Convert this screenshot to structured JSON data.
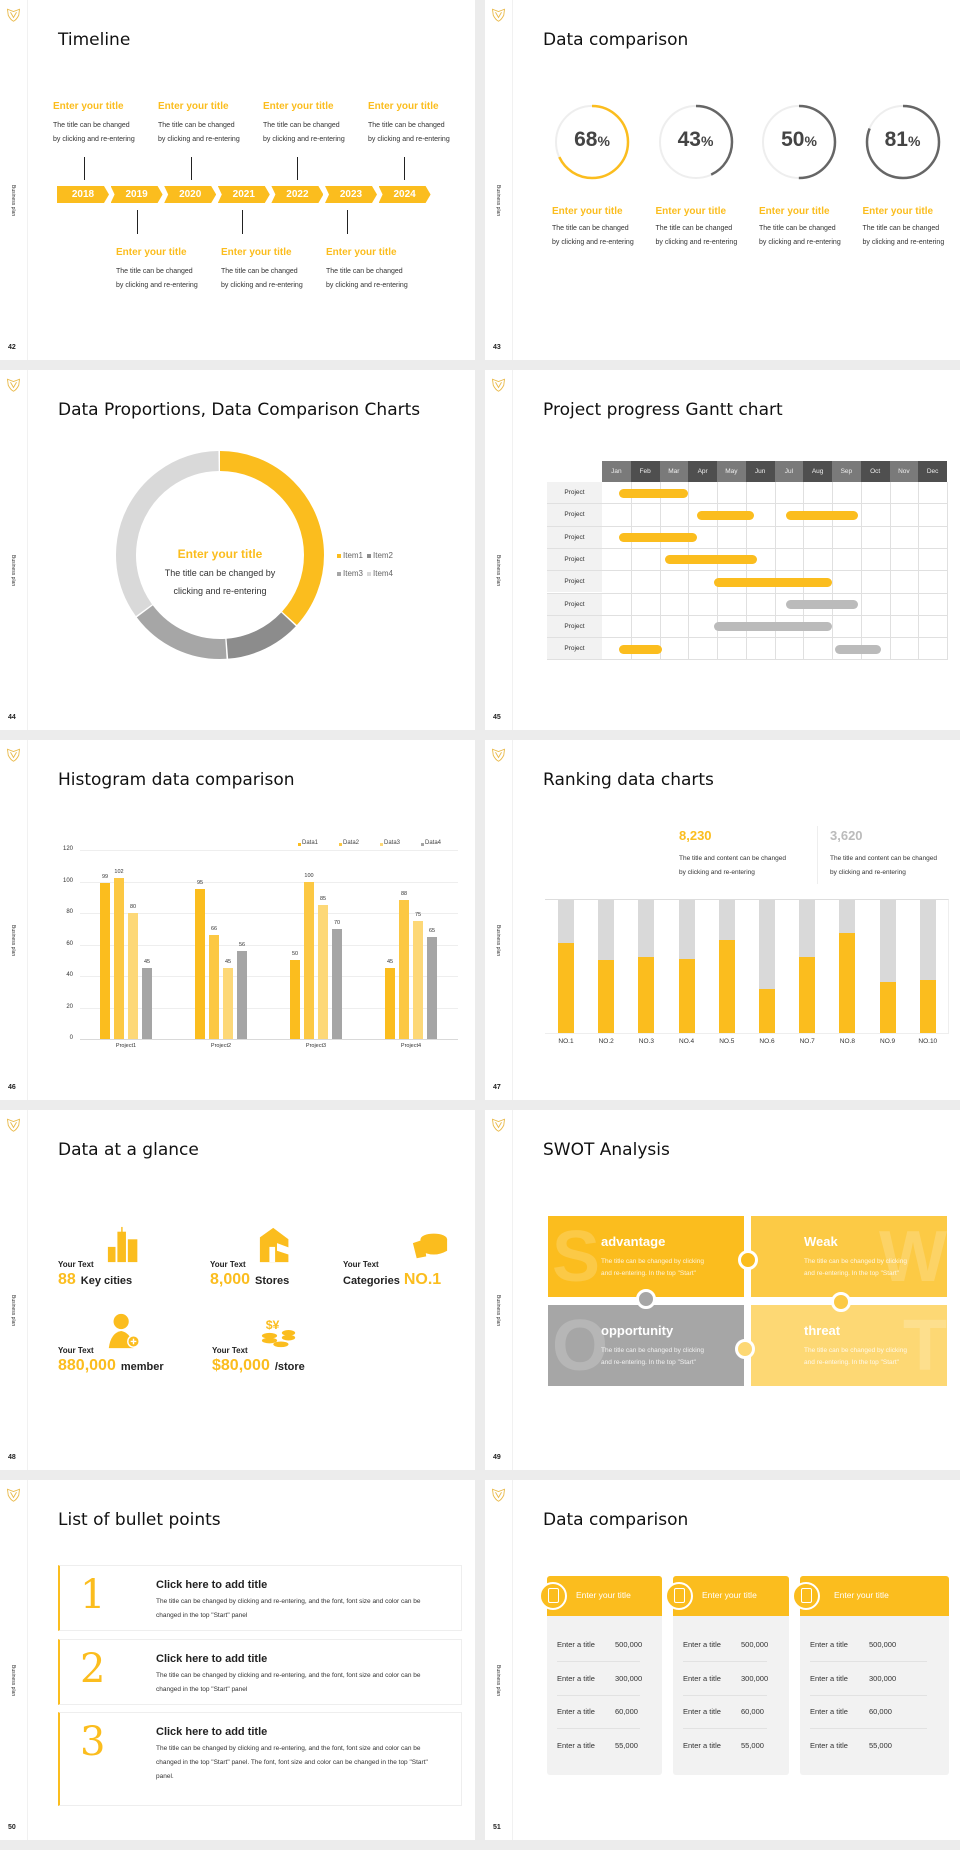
{
  "brand_color": "#FBBD1E",
  "sidebar_label": "Business plan",
  "slides": [
    {
      "page": "42",
      "title": "Timeline",
      "years": [
        "2018",
        "2019",
        "2020",
        "2021",
        "2022",
        "2023",
        "2024"
      ],
      "top_items": [
        {
          "title": "Enter your title",
          "desc1": "The title can be changed",
          "desc2": "by clicking and re-entering"
        },
        {
          "title": "Enter your title",
          "desc1": "The title can be changed",
          "desc2": "by clicking and re-entering"
        },
        {
          "title": "Enter your title",
          "desc1": "The title can be changed",
          "desc2": "by clicking and re-entering"
        },
        {
          "title": "Enter your title",
          "desc1": "The title can be changed",
          "desc2": "by clicking and re-entering"
        }
      ],
      "bottom_items": [
        {
          "title": "Enter your title",
          "desc1": "The title can be changed",
          "desc2": "by clicking and re-entering"
        },
        {
          "title": "Enter your title",
          "desc1": "The title can be changed",
          "desc2": "by clicking and re-entering"
        },
        {
          "title": "Enter your title",
          "desc1": "The title can be changed",
          "desc2": "by clicking and re-entering"
        }
      ]
    },
    {
      "page": "43",
      "title": "Data comparison",
      "items": [
        {
          "value": "68",
          "unit": "%",
          "percent": 68,
          "color": "#FBBD1E",
          "title": "Enter your title",
          "desc1": "The title can be changed",
          "desc2": "by clicking and re-entering"
        },
        {
          "value": "43",
          "unit": "%",
          "percent": 43,
          "color": "#666666",
          "title": "Enter your title",
          "desc1": "The title can be changed",
          "desc2": "by clicking and re-entering"
        },
        {
          "value": "50",
          "unit": "%",
          "percent": 50,
          "color": "#666666",
          "title": "Enter your title",
          "desc1": "The title can be changed",
          "desc2": "by clicking and re-entering"
        },
        {
          "value": "81",
          "unit": "%",
          "percent": 81,
          "color": "#666666",
          "title": "Enter your title",
          "desc1": "The title can be changed",
          "desc2": "by clicking and re-entering"
        }
      ]
    },
    {
      "page": "44",
      "title": "Data Proportions, Data Comparison Charts",
      "center_title": "Enter your title",
      "center_desc1": "The title can be changed by",
      "center_desc2": "clicking and re-entering"
    },
    {
      "page": "45",
      "title": "Project progress Gantt chart"
    },
    {
      "page": "46",
      "title": "Histogram data comparison"
    },
    {
      "page": "47",
      "title": "Ranking data charts",
      "stats": [
        {
          "value": "8,230",
          "color": "#FBBD1E",
          "desc1": "The title and content can be changed",
          "desc2": "by clicking and re-entering"
        },
        {
          "value": "3,620",
          "color": "#BBBBBB",
          "desc1": "The title and content can be changed",
          "desc2": "by clicking and re-entering"
        }
      ]
    },
    {
      "page": "48",
      "title": "Data at a glance",
      "items": [
        {
          "label": "Your Text",
          "number": "88",
          "suffix": "Key cities",
          "icon": "buildings-icon"
        },
        {
          "label": "Your Text",
          "number": "8,000",
          "suffix": "Stores",
          "icon": "store-icon"
        },
        {
          "label": "Your Text",
          "prefix": "Categories",
          "number": "NO.1",
          "icon": "pie-chart-icon"
        },
        {
          "label": "Your Text",
          "number": "880,000",
          "suffix": "member",
          "icon": "add-member-icon"
        },
        {
          "label": "Your Text",
          "number": "$80,000",
          "suffix": "/store",
          "icon": "coins-icon"
        }
      ]
    },
    {
      "page": "49",
      "title": "SWOT Analysis",
      "quadrants": [
        {
          "letter": "S",
          "heading": "advantage",
          "desc1": "The title can be changed by clicking",
          "desc2": "and re-entering. In the top \"Start\"",
          "color": "#FBBD1E"
        },
        {
          "letter": "W",
          "heading": "Weak",
          "desc1": "The title can be changed by clicking",
          "desc2": "and re-entering. In the top \"Start\"",
          "color": "#FCCA45"
        },
        {
          "letter": "O",
          "heading": "opportunity",
          "desc1": "The title can be changed by clicking",
          "desc2": "and re-entering. In the top \"Start\"",
          "color": "#A6A6A6"
        },
        {
          "letter": "T",
          "heading": "threat",
          "desc1": "The title can be changed by clicking",
          "desc2": "and re-entering. In the top \"Start\"",
          "color": "#FDD874"
        }
      ]
    },
    {
      "page": "50",
      "title": "List of bullet points",
      "items": [
        {
          "number": "1",
          "title": "Click here to add title",
          "desc": "The title can be changed by clicking and re-entering, and the font, font size and color can be changed in the top \"Start\" panel"
        },
        {
          "number": "2",
          "title": "Click here to add title",
          "desc": "The title can be changed by clicking and re-entering, and the font, font size and color can be changed in the top \"Start\" panel"
        },
        {
          "number": "3",
          "title": "Click here to add title",
          "desc": "The title can be changed by clicking and re-entering, and the font, font size and color can be changed in the top \"Start\" panel. The font, font size and color can be changed in the top \"Start\" panel."
        }
      ]
    },
    {
      "page": "51",
      "title": "Data comparison",
      "cards": [
        {
          "title": "Enter your title",
          "icon": "profile-card-icon",
          "rows": [
            {
              "label": "Enter a title",
              "value": "500,000"
            },
            {
              "label": "Enter a title",
              "value": "300,000"
            },
            {
              "label": "Enter a title",
              "value": "60,000"
            },
            {
              "label": "Enter a title",
              "value": "55,000"
            }
          ]
        },
        {
          "title": "Enter your title",
          "icon": "user-shield-icon",
          "rows": [
            {
              "label": "Enter a title",
              "value": "500,000"
            },
            {
              "label": "Enter a title",
              "value": "300,000"
            },
            {
              "label": "Enter a title",
              "value": "60,000"
            },
            {
              "label": "Enter a title",
              "value": "55,000"
            }
          ]
        },
        {
          "title": "Enter your title",
          "icon": "team-icon",
          "rows": [
            {
              "label": "Enter a title",
              "value": "500,000"
            },
            {
              "label": "Enter a title",
              "value": "300,000"
            },
            {
              "label": "Enter a title",
              "value": "60,000"
            },
            {
              "label": "Enter a title",
              "value": "55,000"
            }
          ]
        }
      ]
    }
  ],
  "chart_data": [
    {
      "type": "pie",
      "donut": true,
      "categories": [
        "Item1",
        "Item2",
        "Item3",
        "Item4"
      ],
      "values": [
        37,
        12,
        16,
        35
      ],
      "colors": [
        "#FBBD1E",
        "#8C8C8C",
        "#A6A6A6",
        "#D9D9D9"
      ],
      "legend": "right"
    },
    {
      "type": "gantt",
      "months": [
        "Jan",
        "Feb",
        "Mar",
        "Apr",
        "May",
        "Jun",
        "Jul",
        "Aug",
        "Sep",
        "Oct",
        "Nov",
        "Dec"
      ],
      "rows": [
        {
          "label": "Project",
          "bars": [
            {
              "start": 0.6,
              "end": 3.0,
              "color": "#FBBD1E"
            }
          ]
        },
        {
          "label": "Project",
          "bars": [
            {
              "start": 3.3,
              "end": 5.3,
              "color": "#FBBD1E"
            },
            {
              "start": 6.4,
              "end": 8.9,
              "color": "#FBBD1E"
            }
          ]
        },
        {
          "label": "Project",
          "bars": [
            {
              "start": 0.6,
              "end": 3.3,
              "color": "#FBBD1E"
            }
          ]
        },
        {
          "label": "Project",
          "bars": [
            {
              "start": 2.2,
              "end": 5.4,
              "color": "#FBBD1E"
            }
          ]
        },
        {
          "label": "Project",
          "bars": [
            {
              "start": 3.9,
              "end": 8.0,
              "color": "#FBBD1E"
            }
          ]
        },
        {
          "label": "Project",
          "bars": [
            {
              "start": 6.4,
              "end": 8.9,
              "color": "#BBBBBB"
            }
          ]
        },
        {
          "label": "Project",
          "bars": [
            {
              "start": 3.9,
              "end": 8.0,
              "color": "#BBBBBB"
            }
          ]
        },
        {
          "label": "Project",
          "bars": [
            {
              "start": 0.6,
              "end": 2.1,
              "color": "#FBBD1E"
            },
            {
              "start": 8.1,
              "end": 9.7,
              "color": "#BBBBBB"
            }
          ]
        }
      ]
    },
    {
      "type": "bar",
      "categories": [
        "Project1",
        "Project2",
        "Project3",
        "Project4"
      ],
      "series": [
        {
          "name": "Data1",
          "values": [
            99,
            95,
            50,
            45
          ],
          "color": "#FBBD1E"
        },
        {
          "name": "Data2",
          "values": [
            102,
            66,
            100,
            88
          ],
          "color": "#FCC843"
        },
        {
          "name": "Data3",
          "values": [
            80,
            45,
            85,
            75
          ],
          "color": "#FDD877"
        },
        {
          "name": "Data4",
          "values": [
            45,
            56,
            70,
            65
          ],
          "color": "#A5A5A5"
        }
      ],
      "yticks": [
        "0",
        "20",
        "40",
        "60",
        "80",
        "100",
        "120"
      ],
      "ylim": [
        0,
        120
      ],
      "grid": true,
      "legend": "top-right"
    },
    {
      "type": "bar",
      "stacked": true,
      "categories": [
        "NO.1",
        "NO.2",
        "NO.3",
        "NO.4",
        "NO.5",
        "NO.6",
        "NO.7",
        "NO.8",
        "NO.9",
        "NO.10"
      ],
      "values": [
        68,
        55,
        57,
        56,
        70,
        33,
        57,
        75,
        38,
        40
      ],
      "ylim": [
        0,
        100
      ],
      "colors": {
        "value": "#FBBD1E",
        "remainder": "#D9D9D9"
      }
    }
  ]
}
